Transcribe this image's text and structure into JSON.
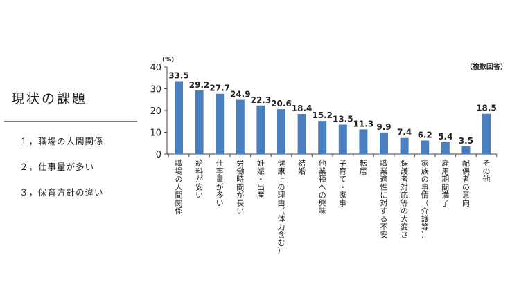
{
  "slide": {
    "title": "現状の課題",
    "items": [
      "１，職場の人間関係",
      "２，仕事量が多い",
      "３，保育方針の違い"
    ]
  },
  "chart_data": {
    "type": "bar",
    "unit_label": "(%)",
    "note": "（複数回答）",
    "ylim": [
      0,
      40
    ],
    "yticks": [
      0,
      10,
      20,
      30,
      40
    ],
    "categories": [
      "職場の人間関係",
      "給料が安い",
      "仕事量が多い",
      "労働時間が長い",
      "妊娠・出産",
      "健康上の理由（体力含む）",
      "結婚",
      "他業種への興味",
      "子育て・家事",
      "転居",
      "職業適性に対する不安",
      "保護者対応等の大変さ",
      "家族の事情（介護等）",
      "雇用期間満了",
      "配偶者の意向",
      "その他"
    ],
    "values": [
      33.5,
      29.2,
      27.7,
      24.9,
      22.3,
      20.6,
      18.4,
      15.2,
      13.5,
      11.3,
      9.9,
      7.4,
      6.2,
      5.4,
      3.5,
      18.5
    ],
    "value_labels": [
      "33.5",
      "29.2",
      "27.7",
      "24.9",
      "22.3",
      "20.6",
      "18.4",
      "15.2",
      "13.5",
      "11.3",
      "9.9",
      "7.4",
      "6.2",
      "5.4",
      "3.5",
      "18.5"
    ],
    "bar_color": "#4a7ebf"
  }
}
